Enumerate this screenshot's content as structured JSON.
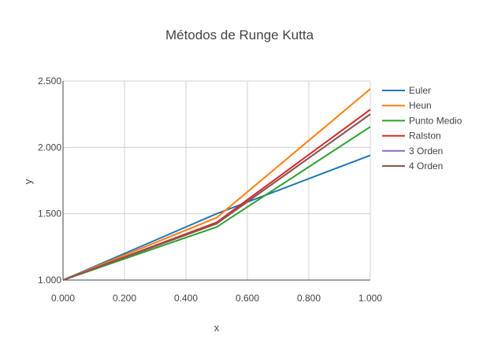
{
  "chart_data": {
    "type": "line",
    "title": "Métodos de Runge Kutta",
    "xlabel": "x",
    "ylabel": "y",
    "xlim": [
      0,
      1
    ],
    "ylim": [
      1,
      2.5
    ],
    "x_ticks": [
      0,
      0.2,
      0.4,
      0.6,
      0.8,
      1.0
    ],
    "x_tick_labels": [
      "0.000",
      "0.200",
      "0.400",
      "0.600",
      "0.800",
      "1.000"
    ],
    "y_ticks": [
      1.0,
      1.5,
      2.0,
      2.5
    ],
    "y_tick_labels": [
      "1.000",
      "1.500",
      "2.000",
      "2.500"
    ],
    "grid": true,
    "legend_position": "right",
    "x": [
      0,
      0.5,
      1.0
    ],
    "series": [
      {
        "name": "Euler",
        "color": "#1f77b4",
        "values": [
          1.0,
          1.5,
          1.94
        ]
      },
      {
        "name": "Heun",
        "color": "#ff7f0e",
        "values": [
          1.0,
          1.47,
          2.44
        ]
      },
      {
        "name": "Punto Medio",
        "color": "#2ca02c",
        "values": [
          1.0,
          1.4,
          2.155
        ]
      },
      {
        "name": "Ralston",
        "color": "#d62728",
        "values": [
          1.0,
          1.435,
          2.285
        ]
      },
      {
        "name": "3 Orden",
        "color": "#9467bd",
        "values": [
          1.0,
          1.425,
          2.25
        ]
      },
      {
        "name": "4 Orden",
        "color": "#8c564b",
        "values": [
          1.0,
          1.425,
          2.25
        ]
      }
    ]
  }
}
